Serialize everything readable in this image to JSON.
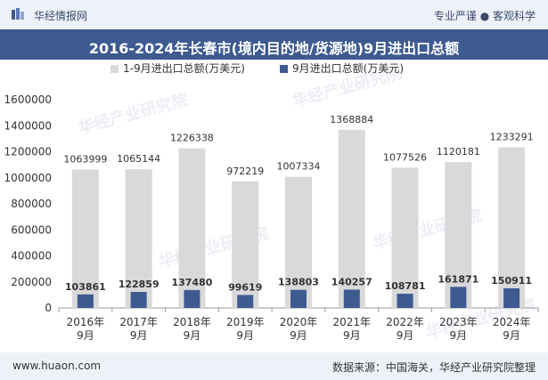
{
  "header": {
    "brand": "华经情报网",
    "tagline": "专业严谨 ● 客观科学"
  },
  "title": "2016-2024年长春市(境内目的地/货源地)9月进出口总额",
  "footer": {
    "site": "www.huaon.com",
    "source": "数据来源：中国海关，华经产业研究院整理"
  },
  "watermark": "华经产业研究院",
  "colors": {
    "header_bg": "#eef2f8",
    "title_bg": "#3d5a91",
    "series_1": "#d9d9d9",
    "series_2": "#3d5a91"
  },
  "chart_data": {
    "type": "bar",
    "categories": [
      "2016年\n9月",
      "2017年\n9月",
      "2018年\n9月",
      "2019年\n9月",
      "2020年\n9月",
      "2021年\n9月",
      "2022年\n9月",
      "2023年\n9月",
      "2024年\n9月"
    ],
    "series": [
      {
        "name": "1-9月进出口总额(万美元)",
        "values": [
          1063999,
          1065144,
          1226338,
          972219,
          1007334,
          1368884,
          1077526,
          1120181,
          1233291
        ]
      },
      {
        "name": "9月进出口总额(万美元)",
        "values": [
          103861,
          122859,
          137480,
          99619,
          138803,
          140257,
          108781,
          161871,
          150911
        ]
      }
    ],
    "ylim": [
      0,
      1600000
    ],
    "yticks": [
      0,
      200000,
      400000,
      600000,
      800000,
      1000000,
      1200000,
      1400000,
      1600000
    ],
    "legend_position": "top",
    "grid": false
  }
}
